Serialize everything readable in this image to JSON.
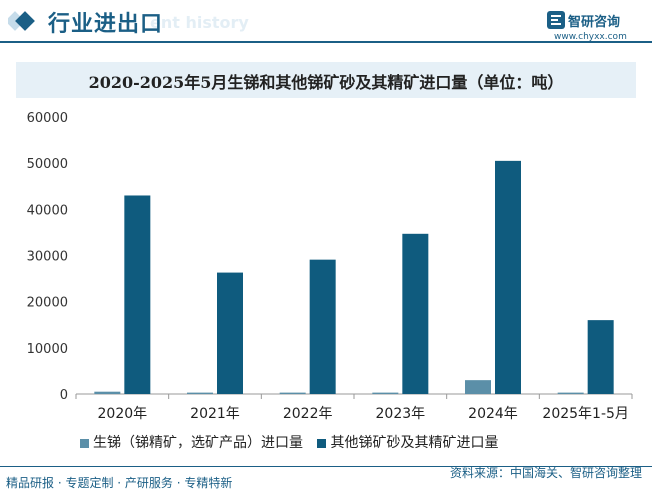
{
  "header": {
    "title": "行业进出口",
    "ghost": "ent history",
    "logo_name": "智研咨询",
    "logo_url": "www.chyxx.com"
  },
  "colors": {
    "brand": "#1b5f86",
    "series_a": "#5b8fa8",
    "series_b": "#0f5b7e"
  },
  "chart_data": {
    "type": "bar",
    "title": "2020-2025年5月生锑和其他锑矿砂及其精矿进口量（单位：吨）",
    "categories": [
      "2020年",
      "2021年",
      "2022年",
      "2023年",
      "2024年",
      "2025年1-5月"
    ],
    "series": [
      {
        "name": "生锑（锑精矿，选矿产品）进口量",
        "values": [
          500,
          300,
          300,
          300,
          3000,
          300
        ]
      },
      {
        "name": "其他锑矿砂及其精矿进口量",
        "values": [
          43000,
          26300,
          29100,
          34700,
          50500,
          16000
        ]
      }
    ],
    "ylim": [
      0,
      60000
    ],
    "yticks": [
      0,
      10000,
      20000,
      30000,
      40000,
      50000,
      60000
    ],
    "grid": false,
    "legend": "bottom",
    "xlabel": "",
    "ylabel": ""
  },
  "footer": {
    "left": "精品研报 · 专题定制 · 产研服务 · 专精特新",
    "right": "资料来源：中国海关、智研咨询整理"
  }
}
